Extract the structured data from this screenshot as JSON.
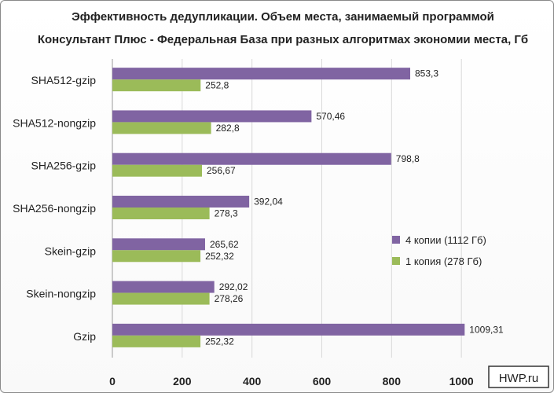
{
  "chart_data": {
    "type": "bar",
    "orientation": "horizontal",
    "title": [
      "Эффективность дедупликации. Объем места, занимаемый программой",
      "Консультант Плюс - Федеральная База при разных алгоритмах экономии места, Гб"
    ],
    "categories": [
      "SHA512-gzip",
      "SHA512-nongzip",
      "SHA256-gzip",
      "SHA256-nongzip",
      "Skein-gzip",
      "Skein-nongzip",
      "Gzip"
    ],
    "series": [
      {
        "name": "4 копии (1112 Гб)",
        "color": "#8064a2",
        "values": [
          853.3,
          570.46,
          798.8,
          392.04,
          265.62,
          292.02,
          1009.31
        ],
        "labels": [
          "853,3",
          "570,46",
          "798,8",
          "392,04",
          "265,62",
          "292,02",
          "1009,31"
        ]
      },
      {
        "name": "1 копия (278 Гб)",
        "color": "#9bbb59",
        "values": [
          252.8,
          282.8,
          256.67,
          278.3,
          252.32,
          278.26,
          252.32
        ],
        "labels": [
          "252,8",
          "282,8",
          "256,67",
          "278,3",
          "252,32",
          "278,26",
          "252,32"
        ]
      }
    ],
    "xlim": [
      0,
      1200
    ],
    "xticks": [
      0,
      200,
      400,
      600,
      800,
      1000
    ],
    "xlabel": "",
    "ylabel": "",
    "grid": true,
    "legend": "right"
  },
  "watermark": "HWP.ru"
}
